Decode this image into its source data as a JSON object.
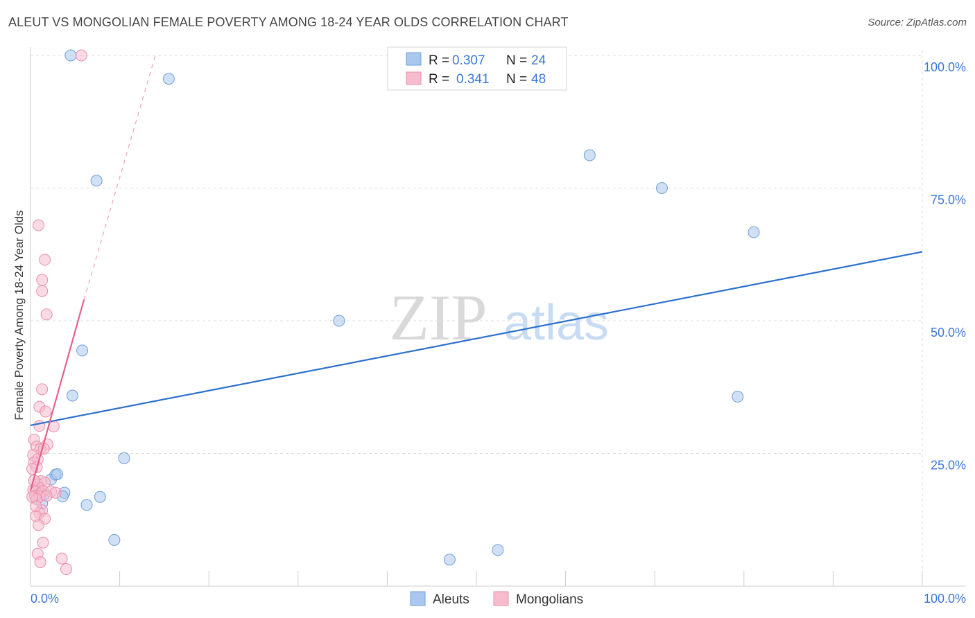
{
  "title": "ALEUT VS MONGOLIAN FEMALE POVERTY AMONG 18-24 YEAR OLDS CORRELATION CHART",
  "source": "Source: ZipAtlas.com",
  "watermark": {
    "zip": "ZIP",
    "atlas": "atlas"
  },
  "chart_data": {
    "type": "scatter",
    "ylabel": "Female Poverty Among 18-24 Year Olds",
    "xlim": [
      0,
      100
    ],
    "ylim": [
      0,
      100
    ],
    "x_tick_labels": {
      "min": "0.0%",
      "max": "100.0%"
    },
    "y_ticks": [
      {
        "value": 25,
        "label": "25.0%"
      },
      {
        "value": 50,
        "label": "50.0%"
      },
      {
        "value": 75,
        "label": "75.0%"
      },
      {
        "value": 100,
        "label": "100.0%"
      }
    ],
    "legend": {
      "position": "top-center",
      "rows": [
        {
          "r_label": "R = ",
          "r_value": "0.307",
          "n_label": "N = ",
          "n_value": "24"
        },
        {
          "r_label": "R = ",
          "r_value": "0.341",
          "n_label": "N = ",
          "n_value": "48"
        }
      ]
    },
    "bottom_legend": [
      "Aleuts",
      "Mongolians"
    ],
    "colors": {
      "aleut_fill": "#aac8ef",
      "aleut_stroke": "#6f9fd8",
      "aleut_line": "#2c6fcf",
      "mongol_fill": "#f6bccd",
      "mongol_stroke": "#ec8eaa",
      "mongol_line": "#e8608a",
      "axis_text": "#3c78d8",
      "grid": "#dcdcdc"
    },
    "series": [
      {
        "name": "Aleuts",
        "trend": {
          "x1": 0,
          "y1": 30.3,
          "x2": 100,
          "y2": 63.0
        },
        "points": [
          [
            4.5,
            100
          ],
          [
            15.5,
            95.6
          ],
          [
            7.4,
            76.4
          ],
          [
            62.7,
            81.2
          ],
          [
            70.8,
            75.0
          ],
          [
            81.1,
            66.7
          ],
          [
            34.6,
            50.0
          ],
          [
            5.8,
            44.4
          ],
          [
            4.7,
            35.9
          ],
          [
            79.3,
            35.7
          ],
          [
            10.5,
            24.1
          ],
          [
            2.3,
            20.1
          ],
          [
            2.8,
            21.0
          ],
          [
            3.0,
            21.1
          ],
          [
            3.8,
            17.6
          ],
          [
            3.6,
            16.9
          ],
          [
            7.8,
            16.8
          ],
          [
            6.3,
            15.3
          ],
          [
            1.3,
            15.6
          ],
          [
            9.4,
            8.7
          ],
          [
            47.0,
            5.0
          ],
          [
            52.4,
            6.8
          ],
          [
            0.8,
            17.4
          ],
          [
            1.5,
            17.2
          ]
        ]
      },
      {
        "name": "Mongolians",
        "trend": {
          "x1": 0,
          "y1": 18.0,
          "x2": 6.0,
          "y2": 54.0,
          "dash_x2": 14.0,
          "dash_y2": 100
        },
        "points": [
          [
            5.7,
            100
          ],
          [
            0.9,
            68.0
          ],
          [
            1.6,
            61.5
          ],
          [
            1.3,
            57.7
          ],
          [
            1.3,
            55.6
          ],
          [
            1.8,
            51.2
          ],
          [
            1.3,
            37.1
          ],
          [
            1.0,
            33.8
          ],
          [
            1.7,
            32.9
          ],
          [
            1.0,
            30.2
          ],
          [
            2.6,
            30.1
          ],
          [
            0.4,
            27.6
          ],
          [
            1.9,
            26.7
          ],
          [
            0.7,
            26.3
          ],
          [
            1.1,
            25.8
          ],
          [
            1.5,
            25.9
          ],
          [
            0.3,
            24.7
          ],
          [
            0.8,
            23.9
          ],
          [
            0.4,
            23.3
          ],
          [
            0.7,
            22.4
          ],
          [
            0.2,
            22.1
          ],
          [
            1.2,
            19.8
          ],
          [
            0.8,
            19.2
          ],
          [
            1.6,
            19.5
          ],
          [
            0.9,
            18.6
          ],
          [
            0.3,
            18.1
          ],
          [
            0.6,
            17.8
          ],
          [
            1.1,
            17.5
          ],
          [
            1.4,
            17.9
          ],
          [
            2.3,
            17.8
          ],
          [
            2.8,
            17.6
          ],
          [
            0.5,
            17.0
          ],
          [
            1.0,
            16.9
          ],
          [
            0.7,
            16.4
          ],
          [
            1.3,
            14.3
          ],
          [
            1.0,
            13.8
          ],
          [
            0.6,
            13.2
          ],
          [
            1.6,
            12.7
          ],
          [
            0.9,
            11.5
          ],
          [
            1.4,
            8.2
          ],
          [
            0.8,
            6.1
          ],
          [
            1.1,
            4.5
          ],
          [
            3.5,
            5.2
          ],
          [
            4.0,
            3.2
          ],
          [
            0.4,
            19.9
          ],
          [
            1.8,
            17.0
          ],
          [
            0.6,
            15.1
          ],
          [
            0.2,
            16.8
          ]
        ]
      }
    ]
  }
}
